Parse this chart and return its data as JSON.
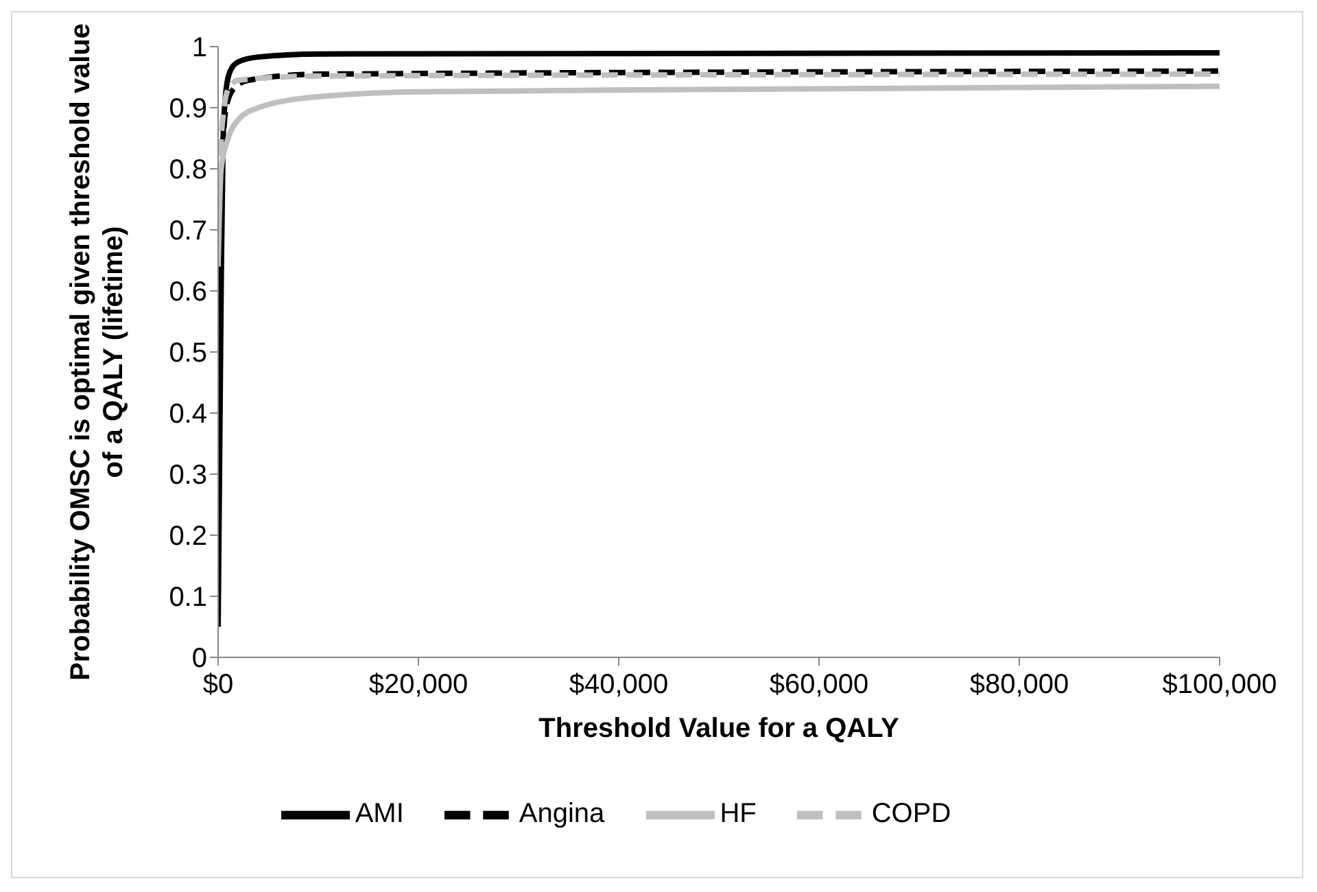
{
  "chart_data": {
    "type": "line",
    "xlabel": "Threshold Value for a QALY",
    "ylabel": "Probability OMSC is optimal given threshold value of a QALY (lifetime)",
    "xlim": [
      0,
      100000
    ],
    "xticks": [
      {
        "value": 0,
        "label": "$0"
      },
      {
        "value": 20000,
        "label": "$20,000"
      },
      {
        "value": 40000,
        "label": "$40,000"
      },
      {
        "value": 60000,
        "label": "$60,000"
      },
      {
        "value": 80000,
        "label": "$80,000"
      },
      {
        "value": 100000,
        "label": "$100,000"
      }
    ],
    "ylim": [
      0,
      1
    ],
    "yticks": [
      0,
      0.1,
      0.2,
      0.3,
      0.4,
      0.5,
      0.6,
      0.7,
      0.8,
      0.9,
      1
    ],
    "grid": false,
    "legend": "bottom",
    "marker": "none",
    "series": [
      {
        "name": "AMI",
        "color": "#000000",
        "line_style": "solid",
        "x": [
          0,
          300,
          500,
          800,
          1200,
          2000,
          4000,
          10000,
          100000
        ],
        "values": [
          0.05,
          0.6,
          0.85,
          0.93,
          0.96,
          0.975,
          0.983,
          0.988,
          0.99
        ]
      },
      {
        "name": "Angina",
        "color": "#000000",
        "line_style": "dashed",
        "x": [
          0,
          400,
          800,
          1500,
          3000,
          10000,
          100000
        ],
        "values": [
          0.3,
          0.8,
          0.9,
          0.93,
          0.945,
          0.955,
          0.96
        ]
      },
      {
        "name": "HF",
        "color": "#bfbfbf",
        "line_style": "solid",
        "x": [
          0,
          300,
          1000,
          2000,
          4000,
          10000,
          20000,
          50000,
          100000
        ],
        "values": [
          0.64,
          0.8,
          0.85,
          0.88,
          0.9,
          0.918,
          0.926,
          0.93,
          0.935
        ]
      },
      {
        "name": "COPD",
        "color": "#bfbfbf",
        "line_style": "dashed",
        "x": [
          0,
          300,
          1000,
          2000,
          10000,
          100000
        ],
        "values": [
          0.7,
          0.85,
          0.93,
          0.945,
          0.952,
          0.955
        ]
      }
    ]
  }
}
